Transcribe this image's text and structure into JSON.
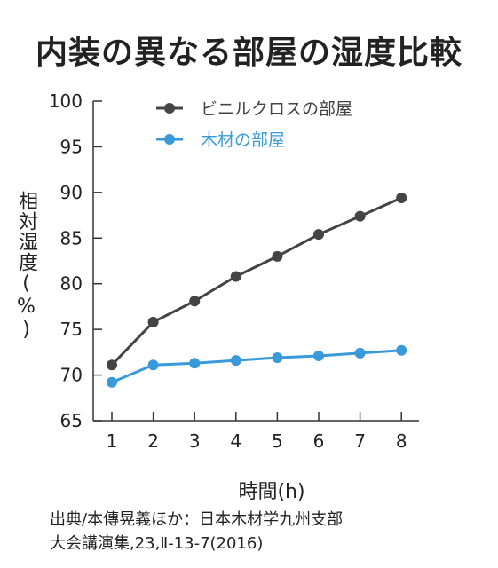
{
  "chart_data": {
    "type": "line",
    "title": "内装の異なる部屋の湿度比較",
    "xlabel": "時間(h)",
    "ylabel": "相対湿度(%)",
    "x": [
      1,
      2,
      3,
      4,
      5,
      6,
      7,
      8
    ],
    "ylim": [
      65,
      100
    ],
    "yticks": [
      65,
      70,
      75,
      80,
      85,
      90,
      95,
      100
    ],
    "grid": false,
    "legend_position": "top",
    "series": [
      {
        "name": "ビニルクロスの部屋",
        "color": "#444444",
        "values": [
          71.1,
          75.8,
          78.1,
          80.8,
          83.0,
          85.4,
          87.4,
          89.4
        ]
      },
      {
        "name": "木材の部屋",
        "color": "#3a9ad9",
        "values": [
          69.2,
          71.1,
          71.3,
          71.6,
          71.9,
          72.1,
          72.4,
          72.7
        ]
      }
    ]
  },
  "source": {
    "line1": "出典/本傳晃義ほか：日本木材学九州支部",
    "line2": "大会講演集,23,Ⅱ-13-7(2016)"
  }
}
